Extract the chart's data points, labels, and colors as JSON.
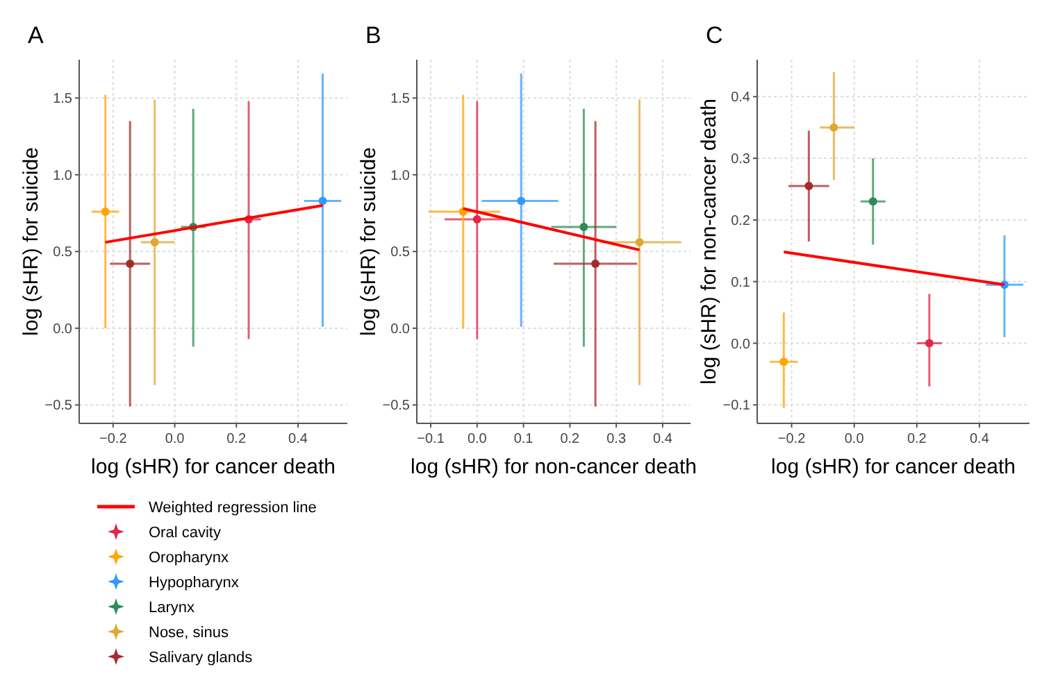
{
  "chart_data": [
    {
      "type": "scatter",
      "title": "A",
      "xlabel": "log (sHR) for cancer death",
      "ylabel": "log (sHR) for suicide",
      "xlim": [
        -0.31,
        0.56
      ],
      "ylim": [
        -0.62,
        1.75
      ],
      "xticks": [
        {
          "value": -0.2,
          "label": "−0.2"
        },
        {
          "value": 0,
          "label": "0.0"
        },
        {
          "value": 0.2,
          "label": "0.2"
        },
        {
          "value": 0.4,
          "label": "0.4"
        }
      ],
      "yticks": [
        {
          "value": -0.5,
          "label": "−0.5"
        },
        {
          "value": 0,
          "label": "0.0"
        },
        {
          "value": 0.5,
          "label": "0.5"
        },
        {
          "value": 1,
          "label": "1.0"
        },
        {
          "value": 1.5,
          "label": "1.5"
        }
      ],
      "grid": true,
      "legend": "bottom",
      "marker": "circle",
      "series": [
        {
          "type": "line",
          "name": "Weighted regression line",
          "color": "#ff0000",
          "marker": "none",
          "x": [
            -0.225,
            0.48
          ],
          "values": [
            0.56,
            0.8
          ]
        },
        {
          "name": "Oral cavity",
          "color": "#e0284a",
          "x": [
            0.24
          ],
          "values": [
            0.71
          ],
          "xerrors": [
            [
              0.2,
              0.28
            ]
          ],
          "errors": [
            [
              -0.07,
              1.48
            ]
          ]
        },
        {
          "name": "Oropharynx",
          "color": "#ffa500",
          "x": [
            -0.225
          ],
          "values": [
            0.76
          ],
          "xerrors": [
            [
              -0.27,
              -0.18
            ]
          ],
          "errors": [
            [
              0.0,
              1.52
            ]
          ]
        },
        {
          "name": "Hypopharynx",
          "color": "#3399ff",
          "x": [
            0.48
          ],
          "values": [
            0.83
          ],
          "xerrors": [
            [
              0.42,
              0.54
            ]
          ],
          "errors": [
            [
              0.01,
              1.66
            ]
          ]
        },
        {
          "name": "Larynx",
          "color": "#2e8b57",
          "x": [
            0.06
          ],
          "values": [
            0.66
          ],
          "xerrors": [
            [
              0.02,
              0.1
            ]
          ],
          "errors": [
            [
              -0.12,
              1.43
            ]
          ]
        },
        {
          "name": "Nose, sinus",
          "color": "#e0a830",
          "x": [
            -0.065
          ],
          "values": [
            0.56
          ],
          "xerrors": [
            [
              -0.11,
              0.0
            ]
          ],
          "errors": [
            [
              -0.37,
              1.49
            ]
          ]
        },
        {
          "name": "Salivary glands",
          "color": "#a52a2a",
          "x": [
            -0.145
          ],
          "values": [
            0.42
          ],
          "xerrors": [
            [
              -0.21,
              -0.08
            ]
          ],
          "errors": [
            [
              -0.51,
              1.35
            ]
          ]
        }
      ]
    },
    {
      "type": "scatter",
      "title": "B",
      "xlabel": "log (sHR) for non-cancer death",
      "ylabel": "log (sHR) for suicide",
      "xlim": [
        -0.13,
        0.46
      ],
      "ylim": [
        -0.62,
        1.75
      ],
      "xticks": [
        {
          "value": -0.1,
          "label": "−0.1"
        },
        {
          "value": 0,
          "label": "0.0"
        },
        {
          "value": 0.1,
          "label": "0.1"
        },
        {
          "value": 0.2,
          "label": "0.2"
        },
        {
          "value": 0.3,
          "label": "0.3"
        },
        {
          "value": 0.4,
          "label": "0.4"
        }
      ],
      "yticks": [
        {
          "value": -0.5,
          "label": "−0.5"
        },
        {
          "value": 0,
          "label": "0.0"
        },
        {
          "value": 0.5,
          "label": "0.5"
        },
        {
          "value": 1,
          "label": "1.0"
        },
        {
          "value": 1.5,
          "label": "1.5"
        }
      ],
      "grid": true,
      "marker": "circle",
      "series": [
        {
          "type": "line",
          "color": "#ff0000",
          "marker": "none",
          "x": [
            -0.03,
            0.35
          ],
          "values": [
            0.78,
            0.51
          ]
        },
        {
          "color": "#e0284a",
          "x": [
            0.0
          ],
          "values": [
            0.71
          ],
          "xerrors": [
            [
              -0.07,
              0.08
            ]
          ],
          "errors": [
            [
              -0.07,
              1.48
            ]
          ]
        },
        {
          "color": "#ffa500",
          "x": [
            -0.03
          ],
          "values": [
            0.76
          ],
          "xerrors": [
            [
              -0.105,
              0.05
            ]
          ],
          "errors": [
            [
              0.0,
              1.52
            ]
          ]
        },
        {
          "color": "#3399ff",
          "x": [
            0.095
          ],
          "values": [
            0.83
          ],
          "xerrors": [
            [
              0.01,
              0.175
            ]
          ],
          "errors": [
            [
              0.01,
              1.66
            ]
          ]
        },
        {
          "color": "#2e8b57",
          "x": [
            0.23
          ],
          "values": [
            0.66
          ],
          "xerrors": [
            [
              0.16,
              0.3
            ]
          ],
          "errors": [
            [
              -0.12,
              1.43
            ]
          ]
        },
        {
          "color": "#e0a830",
          "x": [
            0.35
          ],
          "values": [
            0.56
          ],
          "xerrors": [
            [
              0.265,
              0.44
            ]
          ],
          "errors": [
            [
              -0.37,
              1.49
            ]
          ]
        },
        {
          "color": "#a52a2a",
          "x": [
            0.255
          ],
          "values": [
            0.42
          ],
          "xerrors": [
            [
              0.165,
              0.345
            ]
          ],
          "errors": [
            [
              -0.51,
              1.35
            ]
          ]
        }
      ]
    },
    {
      "type": "scatter",
      "title": "C",
      "xlabel": "log (sHR) for cancer death",
      "ylabel": "log (sHR) for non-cancer death",
      "xlim": [
        -0.31,
        0.56
      ],
      "ylim": [
        -0.13,
        0.46
      ],
      "xticks": [
        {
          "value": -0.2,
          "label": "−0.2"
        },
        {
          "value": 0,
          "label": "0.0"
        },
        {
          "value": 0.2,
          "label": "0.2"
        },
        {
          "value": 0.4,
          "label": "0.4"
        }
      ],
      "yticks": [
        {
          "value": -0.1,
          "label": "−0.1"
        },
        {
          "value": 0,
          "label": "0.0"
        },
        {
          "value": 0.1,
          "label": "0.1"
        },
        {
          "value": 0.2,
          "label": "0.2"
        },
        {
          "value": 0.3,
          "label": "0.3"
        },
        {
          "value": 0.4,
          "label": "0.4"
        }
      ],
      "grid": true,
      "marker": "circle",
      "series": [
        {
          "type": "line",
          "color": "#ff0000",
          "marker": "none",
          "x": [
            -0.225,
            0.48
          ],
          "values": [
            0.148,
            0.095
          ]
        },
        {
          "color": "#e0284a",
          "x": [
            0.24
          ],
          "values": [
            0.0
          ],
          "xerrors": [
            [
              0.2,
              0.28
            ]
          ],
          "errors": [
            [
              -0.07,
              0.08
            ]
          ]
        },
        {
          "color": "#ffa500",
          "x": [
            -0.225
          ],
          "values": [
            -0.03
          ],
          "xerrors": [
            [
              -0.27,
              -0.18
            ]
          ],
          "errors": [
            [
              -0.105,
              0.05
            ]
          ]
        },
        {
          "color": "#3399ff",
          "x": [
            0.48
          ],
          "values": [
            0.095
          ],
          "xerrors": [
            [
              0.42,
              0.54
            ]
          ],
          "errors": [
            [
              0.01,
              0.175
            ]
          ]
        },
        {
          "color": "#2e8b57",
          "x": [
            0.06
          ],
          "values": [
            0.23
          ],
          "xerrors": [
            [
              0.02,
              0.1
            ]
          ],
          "errors": [
            [
              0.16,
              0.3
            ]
          ]
        },
        {
          "color": "#e0a830",
          "x": [
            -0.065
          ],
          "values": [
            0.35
          ],
          "xerrors": [
            [
              -0.11,
              0.0
            ]
          ],
          "errors": [
            [
              0.265,
              0.44
            ]
          ]
        },
        {
          "color": "#a52a2a",
          "x": [
            -0.145
          ],
          "values": [
            0.255
          ],
          "xerrors": [
            [
              -0.21,
              -0.08
            ]
          ],
          "errors": [
            [
              0.165,
              0.345
            ]
          ]
        }
      ]
    }
  ]
}
